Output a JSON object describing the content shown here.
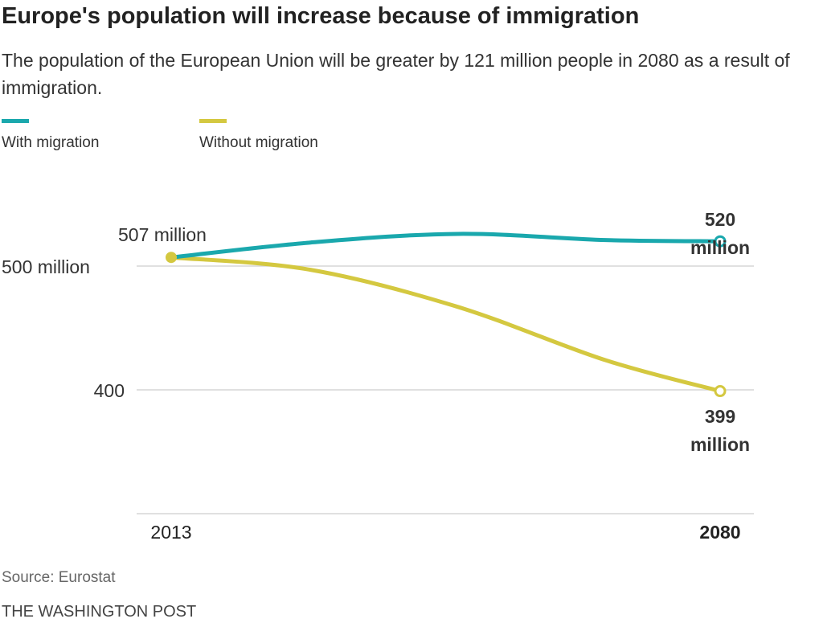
{
  "title": "Europe's population will increase because of immigration",
  "subtitle": "The population of the European Union will be greater by 121 million people in 2080 as a result of immigration.",
  "source": "Source: Eurostat",
  "credit": "THE WASHINGTON POST",
  "chart_data": {
    "type": "line",
    "x": [
      2013,
      2030,
      2048,
      2066,
      2080
    ],
    "xlim": [
      2013,
      2080
    ],
    "ylim": [
      300,
      530
    ],
    "xticks": [
      {
        "value": 2013,
        "label": "2013",
        "bold": false
      },
      {
        "value": 2080,
        "label": "2080",
        "bold": true
      }
    ],
    "yticks": [
      {
        "value": 500,
        "label": "500 million"
      },
      {
        "value": 400,
        "label": "400"
      }
    ],
    "grid": true,
    "legend": "top-left",
    "series": [
      {
        "name": "With migration",
        "color": "#1aa8ad",
        "values": [
          507,
          519,
          526,
          521,
          520
        ]
      },
      {
        "name": "Without migration",
        "color": "#d4c840",
        "values": [
          507,
          497,
          467,
          424,
          399
        ]
      }
    ],
    "annotations": [
      {
        "x": 2013,
        "y": 507,
        "text": "507 million"
      },
      {
        "x": 2080,
        "y": 520,
        "text": "520",
        "text2": "million",
        "series": "With migration"
      },
      {
        "x": 2080,
        "y": 399,
        "text": "399",
        "text2": "million",
        "series": "Without migration"
      }
    ]
  }
}
